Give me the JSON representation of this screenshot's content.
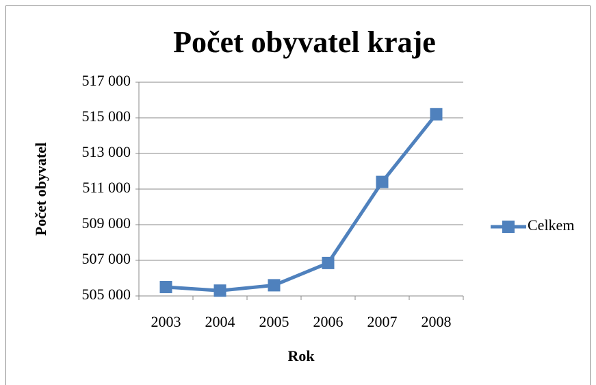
{
  "chart_data": {
    "type": "line",
    "title": "Počet obyvatel kraje",
    "x_label": "Rok",
    "y_label": "Počet obyvatel",
    "categories": [
      "2003",
      "2004",
      "2005",
      "2006",
      "2007",
      "2008"
    ],
    "series": [
      {
        "name": "Celkem",
        "color": "#4f81bd",
        "values": [
          505500,
          505300,
          505600,
          506850,
          511400,
          515200
        ]
      }
    ],
    "ylim": [
      505000,
      517000
    ],
    "yticks": [
      {
        "value": 505000,
        "label": "505 000"
      },
      {
        "value": 507000,
        "label": "507 000"
      },
      {
        "value": 509000,
        "label": "509 000"
      },
      {
        "value": 511000,
        "label": "511 000"
      },
      {
        "value": 513000,
        "label": "513 000"
      },
      {
        "value": 515000,
        "label": "515 000"
      },
      {
        "value": 517000,
        "label": "517 000"
      }
    ],
    "grid": true,
    "legend": "right"
  }
}
